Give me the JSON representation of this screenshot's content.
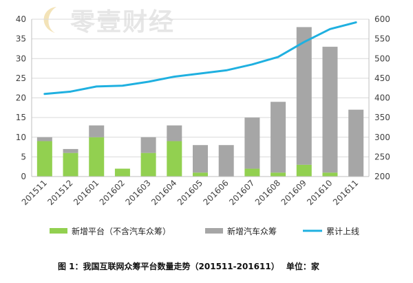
{
  "watermark": "零壹财经",
  "caption": "图 1：我国互联网众筹平台数量走势（201511-201611）　 单位：家",
  "legend": {
    "new_platforms": "新增平台（不含汽车众筹）",
    "new_auto": "新增汽车众筹",
    "cumulative": "累计上线"
  },
  "colors": {
    "new_platforms": "#92d050",
    "new_auto": "#a6a6a6",
    "cumulative": "#1fb0e0"
  },
  "chart_data": {
    "type": "bar",
    "stacked": true,
    "categories": [
      "201511",
      "201512",
      "201601",
      "201602",
      "201603",
      "201604",
      "201605",
      "201606",
      "201607",
      "201608",
      "201609",
      "201610",
      "201611"
    ],
    "series": [
      {
        "name": "新增平台（不含汽车众筹）",
        "type": "bar",
        "axis": "left",
        "values": [
          9,
          6,
          10,
          2,
          6,
          9,
          1,
          0,
          2,
          1,
          3,
          1,
          0
        ]
      },
      {
        "name": "新增汽车众筹",
        "type": "bar",
        "axis": "left",
        "values": [
          1,
          1,
          3,
          0,
          4,
          4,
          7,
          8,
          13,
          18,
          35,
          32,
          17
        ]
      },
      {
        "name": "累计上线",
        "type": "line",
        "axis": "right",
        "values": [
          410,
          416,
          429,
          431,
          441,
          454,
          462,
          470,
          485,
          504,
          542,
          575,
          592
        ]
      }
    ],
    "y_left": {
      "min": 0,
      "max": 40,
      "ticks": [
        0,
        5,
        10,
        15,
        20,
        25,
        30,
        35,
        40
      ]
    },
    "y_right": {
      "min": 200,
      "max": 600,
      "ticks": [
        200,
        250,
        300,
        350,
        400,
        450,
        500,
        550,
        600
      ]
    },
    "grid": true,
    "legend_position": "bottom"
  }
}
